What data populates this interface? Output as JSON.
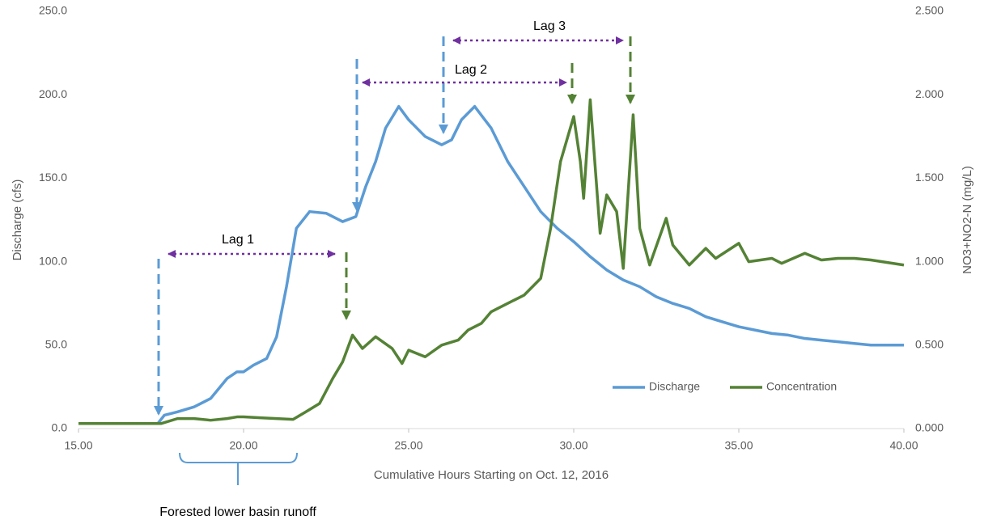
{
  "chart_data": {
    "type": "line",
    "x_label": "Cumulative Hours Starting on Oct. 12, 2016",
    "y_label": "Discharge (cfs)",
    "y2_label": "NO3+NO2-N (mg/L)",
    "xlim": [
      15,
      40
    ],
    "xticks": [
      {
        "value": 15,
        "label": "15.00"
      },
      {
        "value": 20,
        "label": "20.00"
      },
      {
        "value": 25,
        "label": "25.00"
      },
      {
        "value": 30,
        "label": "30.00"
      },
      {
        "value": 35,
        "label": "35.00"
      },
      {
        "value": 40,
        "label": "40.00"
      }
    ],
    "ylim": [
      0,
      250
    ],
    "yticks": [
      {
        "value": 0,
        "label": "0.0"
      },
      {
        "value": 50,
        "label": "50.0"
      },
      {
        "value": 100,
        "label": "100.0"
      },
      {
        "value": 150,
        "label": "150.0"
      },
      {
        "value": 200,
        "label": "200.0"
      },
      {
        "value": 250,
        "label": "250.0"
      }
    ],
    "y2lim": [
      0,
      2.5
    ],
    "y2ticks": [
      {
        "value": 0,
        "label": "0.000"
      },
      {
        "value": 0.5,
        "label": "0.500"
      },
      {
        "value": 1,
        "label": "1.000"
      },
      {
        "value": 1.5,
        "label": "1.500"
      },
      {
        "value": 2,
        "label": "2.000"
      },
      {
        "value": 2.5,
        "label": "2.500"
      }
    ],
    "series": [
      {
        "name": "Discharge",
        "color": "#5b9bd5",
        "x": [
          15,
          16,
          17,
          17.4,
          17.6,
          18,
          18.5,
          19,
          19.5,
          19.8,
          20,
          20.3,
          20.7,
          21,
          21.3,
          21.6,
          22,
          22.5,
          23,
          23.4,
          23.7,
          24,
          24.3,
          24.7,
          25,
          25.5,
          26,
          26.3,
          26.6,
          27,
          27.5,
          28,
          28.5,
          29,
          29.5,
          30,
          30.5,
          31,
          31.5,
          32,
          32.5,
          33,
          33.5,
          34,
          34.5,
          35,
          35.5,
          36,
          36.5,
          37,
          37.5,
          38,
          38.5,
          39,
          39.5,
          40
        ],
        "values": [
          3,
          3,
          3,
          3,
          8,
          10,
          13,
          18,
          30,
          34,
          34,
          38,
          42,
          55,
          85,
          120,
          130,
          129,
          124,
          127,
          145,
          160,
          180,
          193,
          185,
          175,
          170,
          173,
          185,
          193,
          180,
          160,
          145,
          130,
          120,
          112,
          103,
          95,
          89,
          85,
          79,
          75,
          72,
          67,
          64,
          61,
          59,
          57,
          56,
          54,
          53,
          52,
          51,
          50,
          50,
          50
        ]
      },
      {
        "name": "Concentration",
        "color": "#548235",
        "axis": "y2",
        "x": [
          15,
          17.5,
          18,
          18.5,
          19,
          19.5,
          19.8,
          20,
          20.5,
          21,
          21.5,
          21.8,
          22.3,
          22.7,
          23,
          23.3,
          23.6,
          24,
          24.5,
          24.8,
          25,
          25.5,
          26,
          26.5,
          26.8,
          27.2,
          27.5,
          28,
          28.5,
          29,
          29.3,
          29.6,
          30,
          30.2,
          30.3,
          30.5,
          30.6,
          30.8,
          31,
          31.3,
          31.5,
          31.8,
          32,
          32.3,
          32.8,
          33,
          33.5,
          34,
          34.3,
          35,
          35.3,
          36,
          36.3,
          37,
          37.5,
          38,
          38.5,
          39,
          40
        ],
        "values": [
          0.03,
          0.03,
          0.06,
          0.06,
          0.05,
          0.06,
          0.07,
          0.07,
          0.065,
          0.06,
          0.055,
          0.09,
          0.15,
          0.3,
          0.4,
          0.56,
          0.48,
          0.55,
          0.48,
          0.39,
          0.47,
          0.43,
          0.5,
          0.53,
          0.59,
          0.63,
          0.7,
          0.75,
          0.8,
          0.9,
          1.2,
          1.6,
          1.87,
          1.6,
          1.38,
          1.97,
          1.7,
          1.17,
          1.4,
          1.3,
          0.96,
          1.88,
          1.2,
          0.98,
          1.26,
          1.1,
          0.98,
          1.08,
          1.02,
          1.11,
          1.0,
          1.02,
          0.99,
          1.05,
          1.01,
          1.02,
          1.02,
          1.01,
          0.98
        ]
      }
    ],
    "legend": "lower right",
    "annotations": [
      "Lag 1",
      "Lag 2",
      "Lag 3",
      "Forested lower basin runoff"
    ]
  }
}
